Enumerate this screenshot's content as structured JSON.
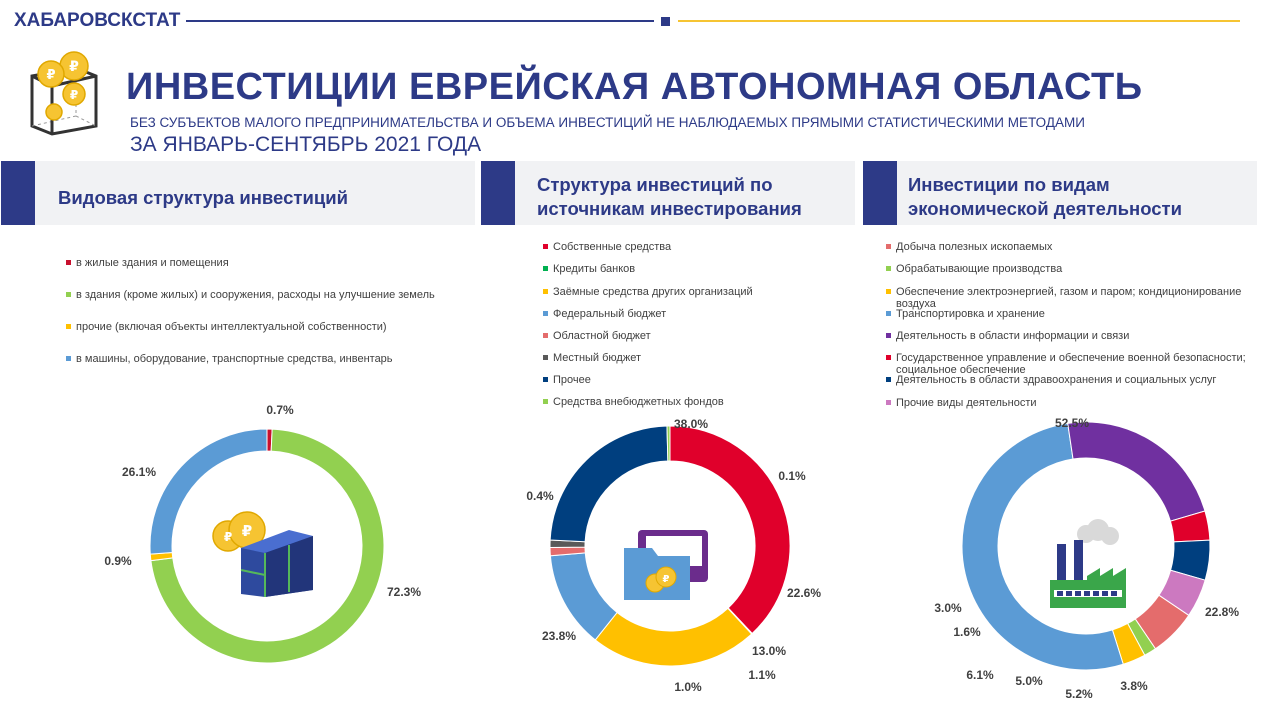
{
  "header": {
    "brand": "ХАБАРОВСКСТАТ",
    "title": "ИНВЕСТИЦИИ ЕВРЕЙСКАЯ АВТОНОМНАЯ  ОБЛАСТЬ",
    "subtitle": "БЕЗ СУБЪЕКТОВ МАЛОГО ПРЕДПРИНИМАТЕЛЬСТВА  И ОБЪЕМА ИНВЕСТИЦИЙ НЕ НАБЛЮДАЕМЫХ  ПРЯМЫМИ  СТАТИСТИЧЕСКИМИ МЕТОДАМИ",
    "period": "ЗА ЯНВАРЬ-СЕНТЯБРЬ 2021 ГОДА",
    "colors": {
      "primary": "#2d3a87",
      "accent": "#f6c432"
    }
  },
  "chart_data": [
    {
      "type": "pie",
      "title": "Видовая структура  инвестиций",
      "center_icon": "box-with-coins-icon",
      "slices": [
        {
          "name": "в жилые здания и помещения",
          "value": 0.7,
          "label": "0.7%",
          "color": "#c8102e"
        },
        {
          "name": "в здания (кроме жилых) и сооружения, расходы на улучшение земель",
          "value": 72.3,
          "label": "72.3%",
          "color": "#92d050"
        },
        {
          "name": "прочие (включая объекты интеллектуальной собственности)",
          "value": 0.9,
          "label": "0.9%",
          "color": "#ffc000"
        },
        {
          "name": "в машины, оборудование, транспортные средства, инвентарь",
          "value": 26.1,
          "label": "26.1%",
          "color": "#5b9bd5"
        }
      ]
    },
    {
      "type": "pie",
      "title": "Структура  инвестиций  по источникам  инвестирования",
      "center_icon": "folder-with-coins-icon",
      "slices": [
        {
          "name": "Собственные средства",
          "value": 38.0,
          "label": "38.0%",
          "color": "#e0002b"
        },
        {
          "name": "Кредиты банков",
          "value": 0.1,
          "label": "0.1%",
          "color": "#00b050"
        },
        {
          "name": "Заёмные средства других организаций",
          "value": 22.6,
          "label": "22.6%",
          "color": "#ffc000"
        },
        {
          "name": "Федеральный бюджет",
          "value": 13.0,
          "label": "13.0%",
          "color": "#5b9bd5"
        },
        {
          "name": "Областной бюджет",
          "value": 1.1,
          "label": "1.1%",
          "color": "#e46c6c"
        },
        {
          "name": "Местный бюджет",
          "value": 1.0,
          "label": "1.0%",
          "color": "#595959"
        },
        {
          "name": "Прочее",
          "value": 23.8,
          "label": "23.8%",
          "color": "#003f7f"
        },
        {
          "name": "Средства внебюджетных фондов",
          "value": 0.4,
          "label": "0.4%",
          "color": "#92d050"
        }
      ]
    },
    {
      "type": "pie",
      "title": "Инвестиции  по видам экономической  деятельности",
      "center_icon": "factory-icon",
      "slices": [
        {
          "name": "Добыча полезных ископаемых",
          "value": 6.1,
          "label": "6.1%",
          "color": "#e46c6c"
        },
        {
          "name": "Обрабатывающие производства",
          "value": 1.6,
          "label": "1.6%",
          "color": "#92d050"
        },
        {
          "name": "Обеспечение электроэнергией, газом и паром; кондиционирование воздуха",
          "value": 3.0,
          "label": "3.0%",
          "color": "#ffc000"
        },
        {
          "name": "Транспортировка и хранение",
          "value": 52.5,
          "label": "52.5%",
          "color": "#5b9bd5"
        },
        {
          "name": "Деятельность в области информации и связи",
          "value": 22.8,
          "label": "22.8%",
          "color": "#7030a0"
        },
        {
          "name": "Государственное управление и обеспечение военной безопасности; социальное обеспечение",
          "value": 3.8,
          "label": "3.8%",
          "color": "#e0002b"
        },
        {
          "name": "Деятельность в области здравоохранения и социальных услуг",
          "value": 5.2,
          "label": "5.2%",
          "color": "#003f7f"
        },
        {
          "name": "Прочие виды деятельности",
          "value": 5.0,
          "label": "5.0%",
          "color": "#cc79c0"
        }
      ]
    }
  ]
}
